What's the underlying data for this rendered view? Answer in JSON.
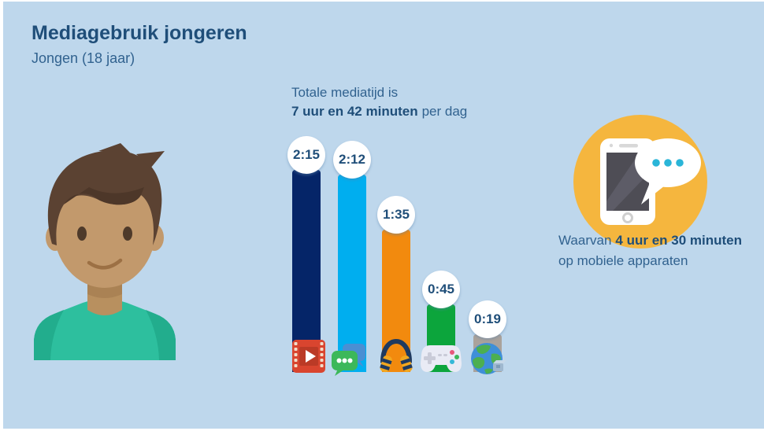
{
  "page": {
    "title": "Mediagebruik jongeren",
    "subtitle": "Jongen (18 jaar)"
  },
  "total": {
    "line1": "Totale mediatijd is",
    "bold": "7 uur en 42 minuten",
    "suffix": "per dag"
  },
  "mobile": {
    "prefix": "Waarvan",
    "bold": "4 uur en 30 minuten",
    "line2": "op mobiele apparaten"
  },
  "colors": {
    "panel_background": "#bed7ec",
    "heading_navy": "#1f4e79",
    "body_blue": "#31628f",
    "feature_circle_yellow": "#f5b63e",
    "badge_white": "#ffffff"
  },
  "icons": [
    "video-film-icon",
    "chat-bubbles-icon",
    "headphones-icon",
    "gamepad-icon",
    "globe-icon",
    "smartphone-icon",
    "speech-bubble-icon",
    "boy-avatar"
  ],
  "chart_data": {
    "type": "bar",
    "title": "Totale mediatijd is 7 uur en 42 minuten per dag",
    "unit": "hours:minutes per day",
    "categories": [
      "video kijken",
      "chatten",
      "muziek luisteren",
      "gamen",
      "internet"
    ],
    "series": [
      {
        "name": "mediatijd (minuten)",
        "values": [
          135,
          132,
          95,
          45,
          19
        ]
      }
    ],
    "labels": [
      "2:15",
      "2:12",
      "1:35",
      "0:45",
      "0:19"
    ],
    "bar_colors": [
      "#052568",
      "#00aeef",
      "#f28a0e",
      "#0ca53c",
      "#aaa29b"
    ],
    "legend": "none",
    "axes": "none",
    "annotation_mobile_share": "Waarvan 4 uur en 30 minuten op mobiele apparaten"
  }
}
